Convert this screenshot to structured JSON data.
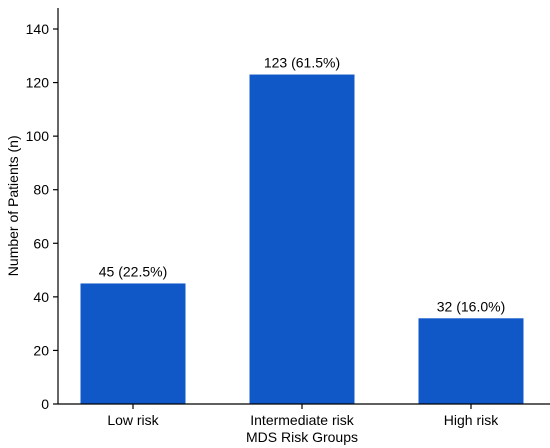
{
  "chart_data": {
    "type": "bar",
    "categories": [
      "Low risk",
      "Intermediate risk",
      "High risk"
    ],
    "values": [
      45,
      123,
      32
    ],
    "data_labels": [
      "45 (22.5%)",
      "123 (61.5%)",
      "32 (16.0%)"
    ],
    "title": "",
    "xlabel": "MDS Risk Groups",
    "ylabel": "Number of Patients (n)",
    "ylim": [
      0,
      148
    ],
    "yticks": [
      0,
      20,
      40,
      60,
      80,
      100,
      120,
      140
    ],
    "grid": false,
    "legend": "none",
    "bar_color": "#1058C8",
    "axis_color": "#000000"
  }
}
